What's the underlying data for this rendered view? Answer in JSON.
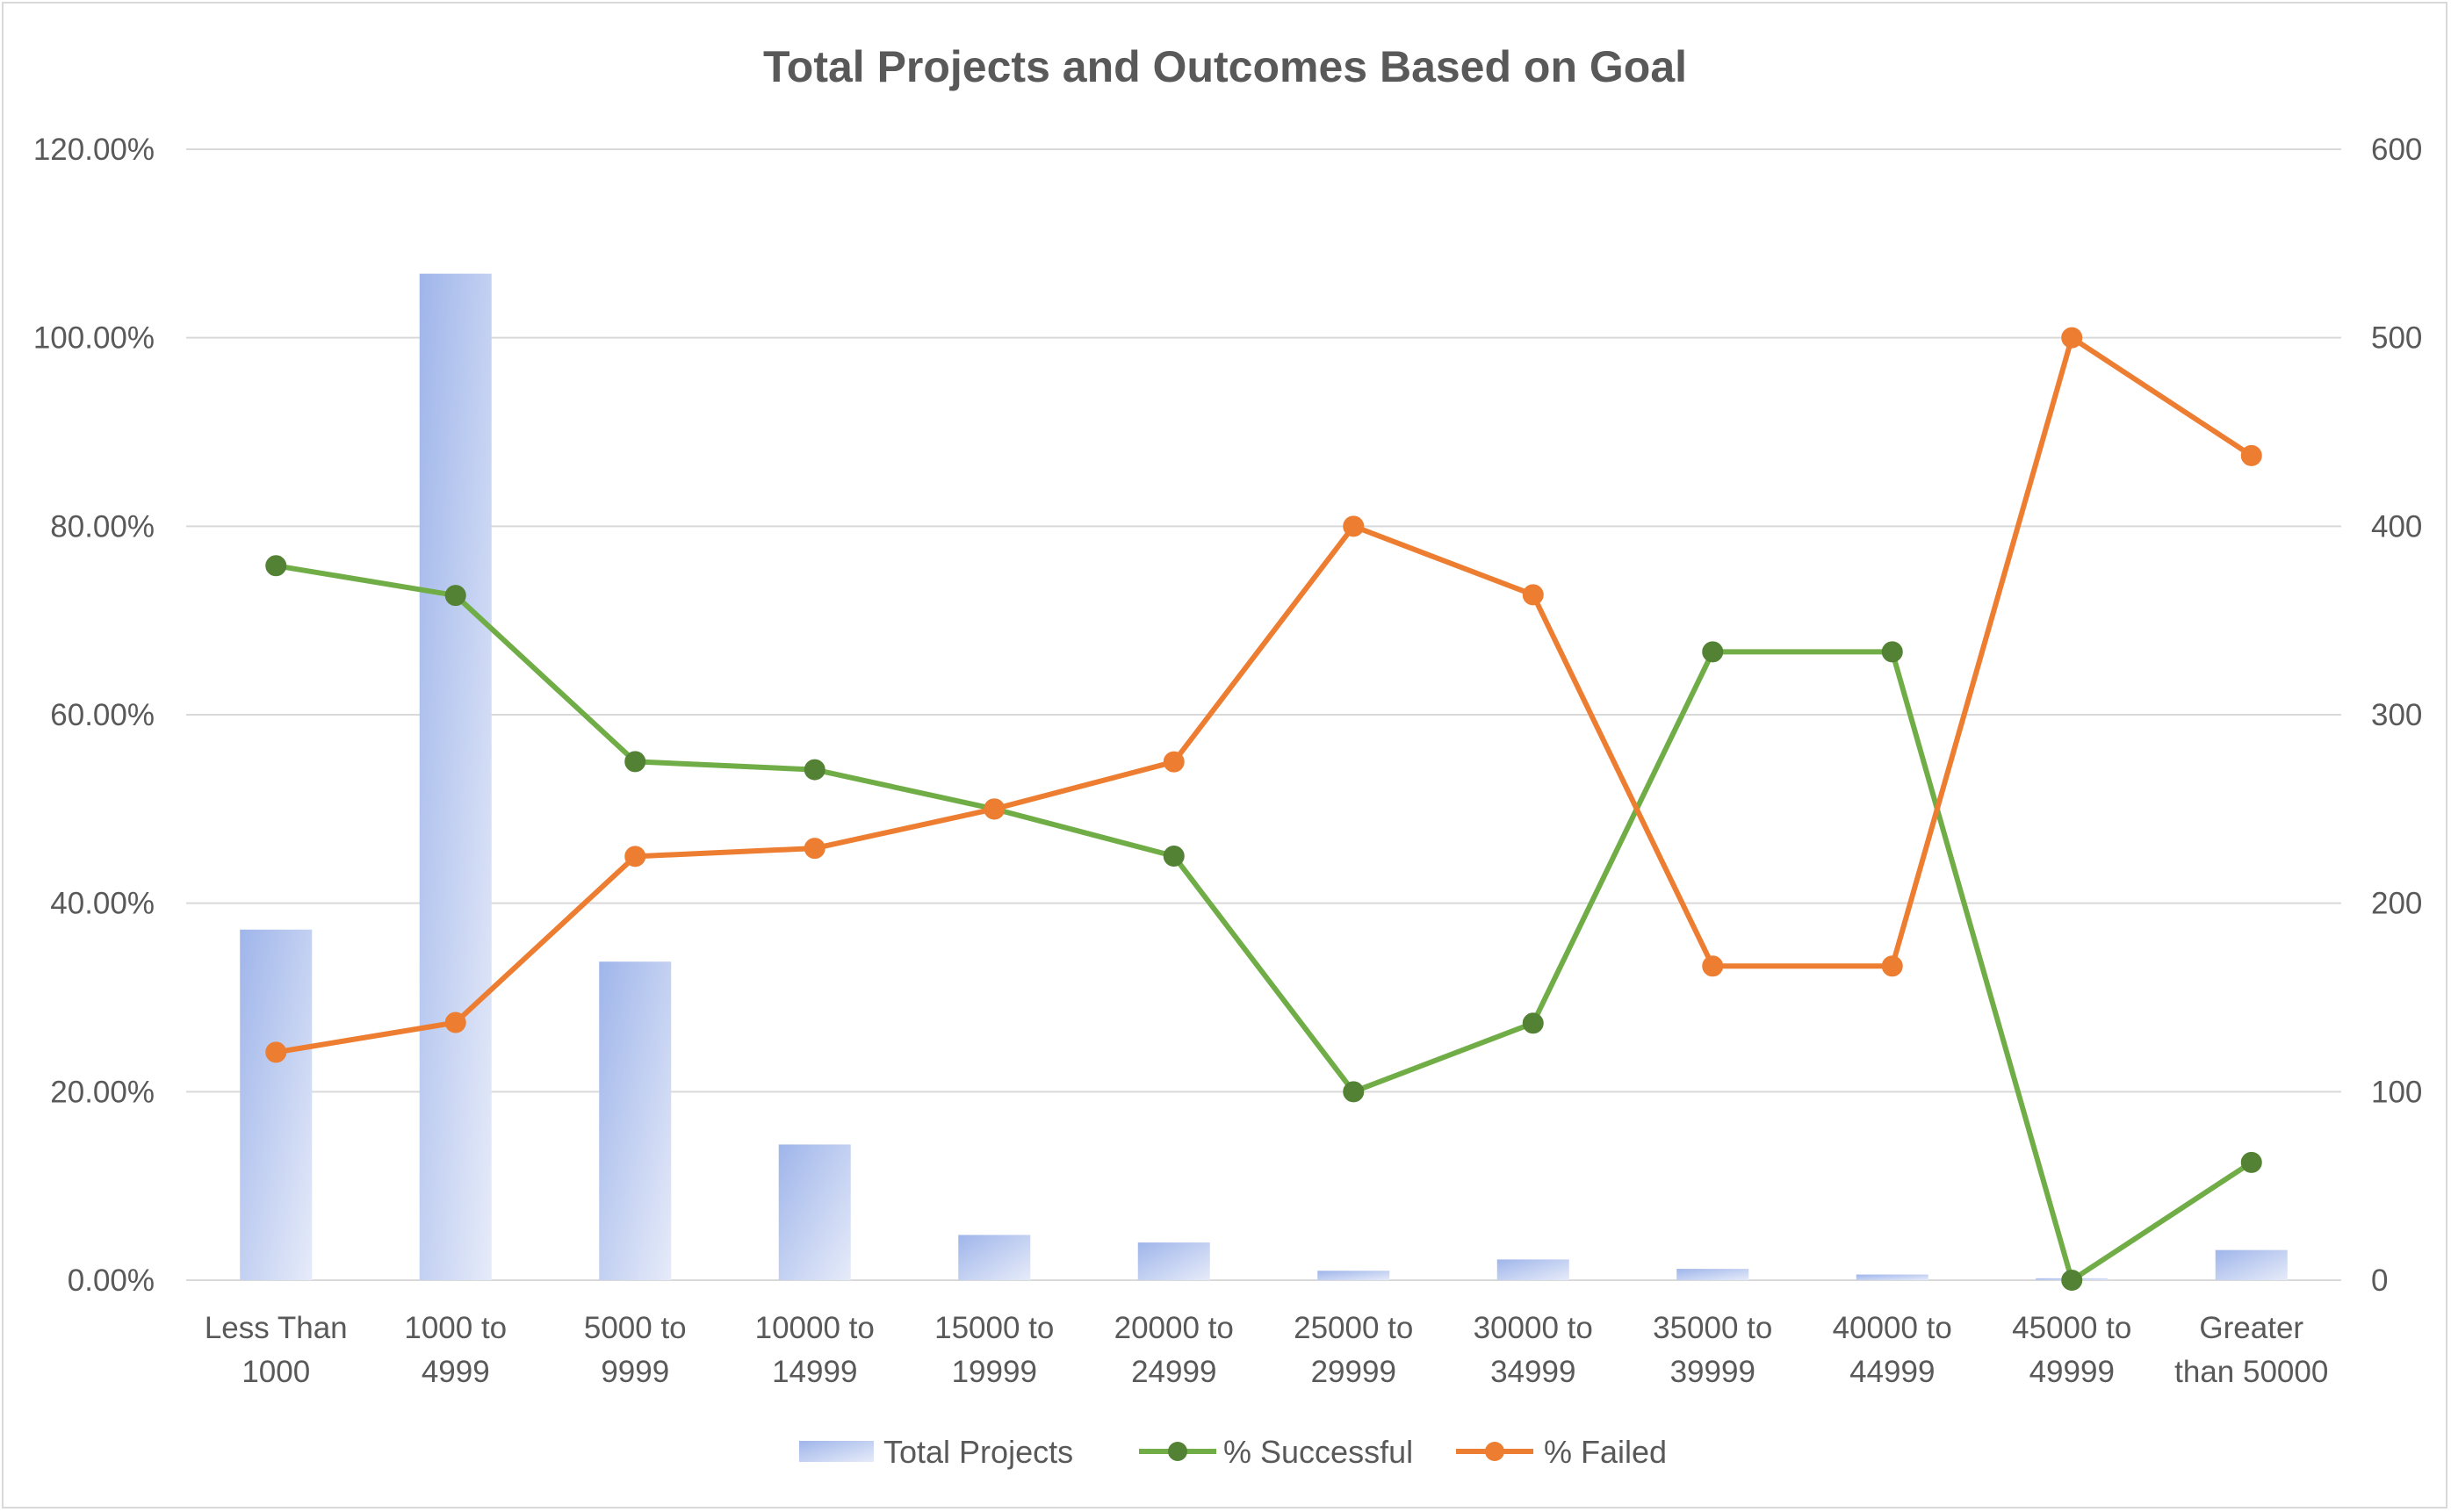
{
  "chart_data": {
    "type": "bar",
    "title": "Total Projects and Outcomes Based on Goal",
    "categories": [
      [
        "Less Than",
        "1000"
      ],
      [
        "1000 to",
        "4999"
      ],
      [
        "5000 to",
        "9999"
      ],
      [
        "10000 to",
        "14999"
      ],
      [
        "15000 to",
        "19999"
      ],
      [
        "20000 to",
        "24999"
      ],
      [
        "25000 to",
        "29999"
      ],
      [
        "30000 to",
        "34999"
      ],
      [
        "35000 to",
        "39999"
      ],
      [
        "40000 to",
        "44999"
      ],
      [
        "45000 to",
        "49999"
      ],
      [
        "Greater",
        "than 50000"
      ]
    ],
    "y_left": {
      "ticks": [
        "0.00%",
        "20.00%",
        "40.00%",
        "60.00%",
        "80.00%",
        "100.00%",
        "120.00%"
      ],
      "ylim": [
        0,
        1.2
      ]
    },
    "y_right": {
      "ticks": [
        "0",
        "100",
        "200",
        "300",
        "400",
        "500",
        "600"
      ],
      "ylim": [
        0,
        600
      ]
    },
    "grid": true,
    "legend_position": "bottom",
    "series": [
      {
        "name": "Total Projects",
        "type": "bar",
        "axis": "right",
        "color": "#8faadc",
        "values": [
          186,
          534,
          169,
          72,
          24,
          20,
          5,
          11,
          6,
          3,
          1,
          16
        ]
      },
      {
        "name": "% Successful",
        "type": "line",
        "axis": "left",
        "color": "#70ad47",
        "marker_color": "#548235",
        "values": [
          0.7581,
          0.7266,
          0.5503,
          0.5417,
          0.5,
          0.45,
          0.2,
          0.2727,
          0.6667,
          0.6667,
          0.0,
          0.125
        ]
      },
      {
        "name": "% Failed",
        "type": "line",
        "axis": "left",
        "color": "#ed7d31",
        "marker_color": "#ed7d31",
        "values": [
          0.2419,
          0.2734,
          0.4497,
          0.4583,
          0.5,
          0.55,
          0.8,
          0.7273,
          0.3333,
          0.3333,
          1.0,
          0.875
        ]
      }
    ]
  }
}
